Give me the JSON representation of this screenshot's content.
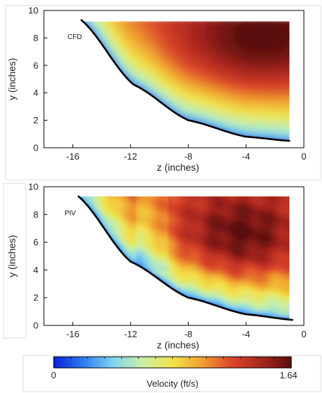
{
  "chart_data": [
    {
      "type": "heatmap",
      "panel_label": "CFD",
      "xlabel": "z (inches)",
      "ylabel": "y (inches)",
      "xlim": [
        -18,
        0
      ],
      "ylim": [
        0,
        10
      ],
      "xticks": [
        -16,
        -12,
        -8,
        -4,
        0
      ],
      "yticks": [
        0,
        2,
        4,
        6,
        8,
        10
      ],
      "field": "velocity magnitude (ft/s)",
      "wall": {
        "z": [
          -15.4,
          -11.8,
          -8.0,
          -4.0,
          -1.0
        ],
        "y": [
          9.3,
          4.6,
          2.0,
          0.8,
          0.5
        ]
      },
      "field_extent": {
        "z": [
          -15.4,
          -1.0
        ],
        "y": [
          0.5,
          9.2
        ]
      },
      "max_region": {
        "z": [
          -5,
          -1
        ],
        "y": [
          6,
          9.2
        ],
        "value": 1.64
      },
      "min_region": "along the curved wall",
      "value_range": [
        0,
        1.64
      ]
    },
    {
      "type": "heatmap",
      "panel_label": "PIV",
      "xlabel": "z (inches)",
      "ylabel": "y (inches)",
      "xlim": [
        -18,
        0
      ],
      "ylim": [
        0,
        10
      ],
      "xticks": [
        -16,
        -12,
        -8,
        -4,
        0
      ],
      "yticks": [
        0,
        2,
        4,
        6,
        8,
        10
      ],
      "field": "velocity magnitude (ft/s)",
      "wall": {
        "z": [
          -15.6,
          -12.0,
          -8.0,
          -4.0,
          -0.8
        ],
        "y": [
          9.3,
          4.6,
          2.0,
          0.8,
          0.4
        ]
      },
      "field_extent": {
        "z": [
          -15.6,
          -1.0
        ],
        "y": [
          0.4,
          9.3
        ]
      },
      "max_region": {
        "z": [
          -6,
          -3
        ],
        "y": [
          4.5,
          8
        ],
        "value": 1.64
      },
      "min_region": "along the curved wall",
      "value_range": [
        0,
        1.64
      ]
    }
  ],
  "colorbar": {
    "label": "Velocity (ft/s)",
    "min_label": "0",
    "max_label": "1.64",
    "min": 0,
    "max": 1.64,
    "colors": [
      "#0a1ed8",
      "#2f7cf0",
      "#7fd4f2",
      "#c9f0a6",
      "#f2e24a",
      "#f0a12f",
      "#d9442a",
      "#a8251e",
      "#5a0e0e"
    ]
  }
}
